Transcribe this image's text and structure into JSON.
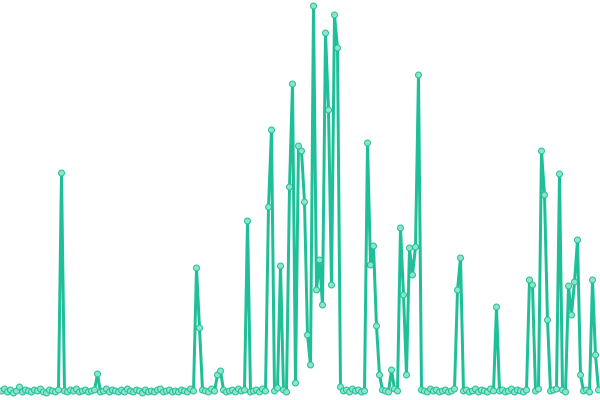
{
  "chart_data": {
    "type": "line",
    "values": [
      4,
      6,
      3,
      5,
      2,
      4,
      8,
      3,
      5,
      4,
      3,
      5,
      4,
      6,
      3,
      2,
      5,
      4,
      3,
      5,
      222,
      4,
      3,
      5,
      4,
      6,
      3,
      4,
      5,
      3,
      4,
      5,
      21,
      3,
      4,
      6,
      3,
      5,
      4,
      3,
      5,
      3,
      6,
      4,
      3,
      5,
      4,
      2,
      5,
      3,
      4,
      3,
      5,
      6,
      3,
      4,
      5,
      3,
      4,
      3,
      5,
      4,
      3,
      6,
      4,
      127,
      67,
      5,
      4,
      3,
      6,
      4,
      20,
      24,
      5,
      3,
      4,
      5,
      3,
      6,
      4,
      5,
      174,
      3,
      4,
      5,
      3,
      6,
      4,
      188,
      265,
      4,
      7,
      129,
      5,
      3,
      208,
      311,
      12,
      249,
      244,
      193,
      60,
      30,
      389,
      105,
      135,
      90,
      362,
      285,
      110,
      380,
      347,
      8,
      4,
      5,
      3,
      6,
      4,
      5,
      3,
      4,
      252,
      130,
      149,
      69,
      20,
      5,
      4,
      3,
      25,
      6,
      4,
      167,
      100,
      20,
      147,
      120,
      148,
      320,
      5,
      4,
      3,
      6,
      4,
      5,
      3,
      4,
      5,
      3,
      4,
      6,
      105,
      137,
      4,
      5,
      3,
      4,
      6,
      3,
      5,
      4,
      3,
      6,
      4,
      88,
      4,
      5,
      3,
      4,
      6,
      3,
      5,
      4,
      3,
      5,
      115,
      110,
      4,
      6,
      244,
      200,
      75,
      4,
      5,
      6,
      221,
      5,
      3,
      109,
      80,
      113,
      155,
      20,
      4,
      5,
      3,
      115,
      40,
      5
    ],
    "color": "#1fbf98",
    "marker_color": "#8fe3c9",
    "ylim": [
      0,
      395
    ]
  }
}
